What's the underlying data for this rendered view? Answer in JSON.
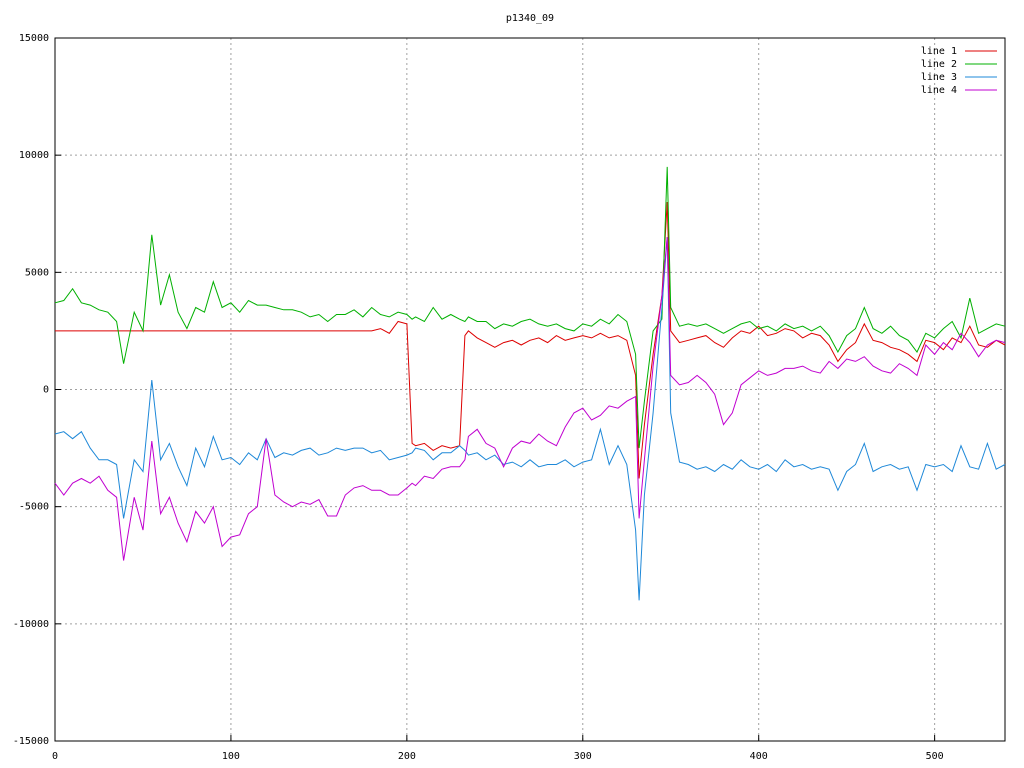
{
  "chart_data": {
    "type": "line",
    "title": "p1340_09",
    "x": [
      0,
      5,
      10,
      15,
      20,
      25,
      30,
      35,
      39,
      45,
      50,
      55,
      60,
      65,
      70,
      75,
      80,
      85,
      90,
      95,
      100,
      105,
      110,
      115,
      120,
      125,
      130,
      135,
      140,
      145,
      150,
      155,
      160,
      165,
      170,
      175,
      180,
      185,
      190,
      195,
      200,
      203,
      205,
      210,
      215,
      220,
      225,
      230,
      233,
      235,
      240,
      245,
      250,
      255,
      260,
      265,
      270,
      275,
      280,
      285,
      290,
      295,
      300,
      305,
      310,
      315,
      320,
      325,
      330,
      332,
      335,
      340,
      345,
      348,
      350,
      355,
      360,
      365,
      370,
      375,
      380,
      385,
      390,
      395,
      400,
      405,
      410,
      415,
      420,
      425,
      430,
      435,
      440,
      445,
      450,
      455,
      460,
      465,
      470,
      475,
      480,
      485,
      490,
      495,
      500,
      505,
      510,
      515,
      520,
      525,
      530,
      535,
      540
    ],
    "series": [
      {
        "name": "line 1",
        "color": "#dd0000",
        "values": [
          2500,
          2500,
          2500,
          2500,
          2500,
          2500,
          2500,
          2500,
          2500,
          2500,
          2500,
          2500,
          2500,
          2500,
          2500,
          2500,
          2500,
          2500,
          2500,
          2500,
          2500,
          2500,
          2500,
          2500,
          2500,
          2500,
          2500,
          2500,
          2500,
          2500,
          2500,
          2500,
          2500,
          2500,
          2500,
          2500,
          2500,
          2600,
          2400,
          2900,
          2800,
          -2300,
          -2400,
          -2300,
          -2600,
          -2400,
          -2500,
          -2400,
          2300,
          2500,
          2200,
          2000,
          1800,
          2000,
          2100,
          1900,
          2100,
          2200,
          2000,
          2300,
          2100,
          2200,
          2300,
          2200,
          2400,
          2200,
          2300,
          2100,
          600,
          -3800,
          -1500,
          1500,
          4000,
          8000,
          2500,
          2000,
          2100,
          2200,
          2300,
          2000,
          1800,
          2200,
          2500,
          2400,
          2700,
          2300,
          2400,
          2600,
          2500,
          2200,
          2400,
          2300,
          1900,
          1200,
          1700,
          2000,
          2800,
          2100,
          2000,
          1800,
          1700,
          1500,
          1200,
          2100,
          2000,
          1700,
          2200,
          2000,
          2700,
          1900,
          1800,
          2100,
          1900
        ]
      },
      {
        "name": "line 2",
        "color": "#00b000",
        "values": [
          3700,
          3800,
          4300,
          3700,
          3600,
          3400,
          3300,
          2900,
          1100,
          3300,
          2500,
          6600,
          3600,
          4900,
          3300,
          2600,
          3500,
          3300,
          4600,
          3500,
          3700,
          3300,
          3800,
          3600,
          3600,
          3500,
          3400,
          3400,
          3300,
          3100,
          3200,
          2900,
          3200,
          3200,
          3400,
          3100,
          3500,
          3200,
          3100,
          3300,
          3200,
          3000,
          3100,
          2900,
          3500,
          3000,
          3200,
          3000,
          2900,
          3100,
          2900,
          2900,
          2600,
          2800,
          2700,
          2900,
          3000,
          2800,
          2700,
          2800,
          2600,
          2500,
          2800,
          2700,
          3000,
          2800,
          3200,
          2900,
          1500,
          -2500,
          -500,
          2500,
          3000,
          9500,
          3500,
          2700,
          2800,
          2700,
          2800,
          2600,
          2400,
          2600,
          2800,
          2900,
          2600,
          2700,
          2500,
          2800,
          2600,
          2700,
          2500,
          2700,
          2300,
          1600,
          2300,
          2600,
          3500,
          2600,
          2400,
          2700,
          2300,
          2100,
          1600,
          2400,
          2200,
          2600,
          2900,
          2200,
          3900,
          2400,
          2600,
          2800,
          2700
        ]
      },
      {
        "name": "line 3",
        "color": "#1e88d8",
        "values": [
          -1900,
          -1800,
          -2100,
          -1800,
          -2500,
          -3000,
          -3000,
          -3200,
          -5500,
          -3000,
          -3500,
          400,
          -3000,
          -2300,
          -3300,
          -4100,
          -2500,
          -3300,
          -2000,
          -3000,
          -2900,
          -3200,
          -2700,
          -3000,
          -2100,
          -2900,
          -2700,
          -2800,
          -2600,
          -2500,
          -2800,
          -2700,
          -2500,
          -2600,
          -2500,
          -2500,
          -2700,
          -2600,
          -3000,
          -2900,
          -2800,
          -2700,
          -2500,
          -2600,
          -3000,
          -2700,
          -2700,
          -2400,
          -2600,
          -2800,
          -2700,
          -3000,
          -2800,
          -3200,
          -3100,
          -3300,
          -3000,
          -3300,
          -3200,
          -3200,
          -3000,
          -3300,
          -3100,
          -3000,
          -1700,
          -3200,
          -2400,
          -3200,
          -6000,
          -9000,
          -4500,
          -1000,
          3500,
          6500,
          -1000,
          -3100,
          -3200,
          -3400,
          -3300,
          -3500,
          -3200,
          -3400,
          -3000,
          -3300,
          -3400,
          -3200,
          -3500,
          -3000,
          -3300,
          -3200,
          -3400,
          -3300,
          -3400,
          -4300,
          -3500,
          -3200,
          -2300,
          -3500,
          -3300,
          -3200,
          -3400,
          -3300,
          -4300,
          -3200,
          -3300,
          -3200,
          -3500,
          -2400,
          -3300,
          -3400,
          -2300,
          -3400,
          -3200
        ]
      },
      {
        "name": "line 4",
        "color": "#c000d0",
        "values": [
          -4000,
          -4500,
          -4000,
          -3800,
          -4000,
          -3700,
          -4300,
          -4600,
          -7300,
          -4600,
          -6000,
          -2200,
          -5300,
          -4600,
          -5700,
          -6500,
          -5200,
          -5700,
          -5000,
          -6700,
          -6300,
          -6200,
          -5300,
          -5000,
          -2100,
          -4500,
          -4800,
          -5000,
          -4800,
          -4900,
          -4700,
          -5400,
          -5400,
          -4500,
          -4200,
          -4100,
          -4300,
          -4300,
          -4500,
          -4500,
          -4200,
          -4000,
          -4100,
          -3700,
          -3800,
          -3400,
          -3300,
          -3300,
          -3000,
          -2000,
          -1700,
          -2300,
          -2500,
          -3300,
          -2500,
          -2200,
          -2300,
          -1900,
          -2200,
          -2400,
          -1600,
          -1000,
          -800,
          -1300,
          -1100,
          -700,
          -800,
          -500,
          -300,
          -5500,
          -3000,
          1000,
          4000,
          6500,
          600,
          200,
          300,
          600,
          300,
          -200,
          -1500,
          -1000,
          200,
          500,
          800,
          600,
          700,
          900,
          900,
          1000,
          800,
          700,
          1200,
          900,
          1300,
          1200,
          1400,
          1000,
          800,
          700,
          1100,
          900,
          600,
          1900,
          1500,
          2000,
          1700,
          2400,
          2000,
          1400,
          1900,
          2100,
          2000
        ]
      }
    ],
    "xlim": [
      0,
      540
    ],
    "xticks": [
      0,
      100,
      200,
      300,
      400,
      500
    ],
    "ylim": [
      -15000,
      15000
    ],
    "yticks": [
      -15000,
      -10000,
      -5000,
      0,
      5000,
      10000,
      15000
    ],
    "grid": true,
    "legend": "top-right"
  }
}
